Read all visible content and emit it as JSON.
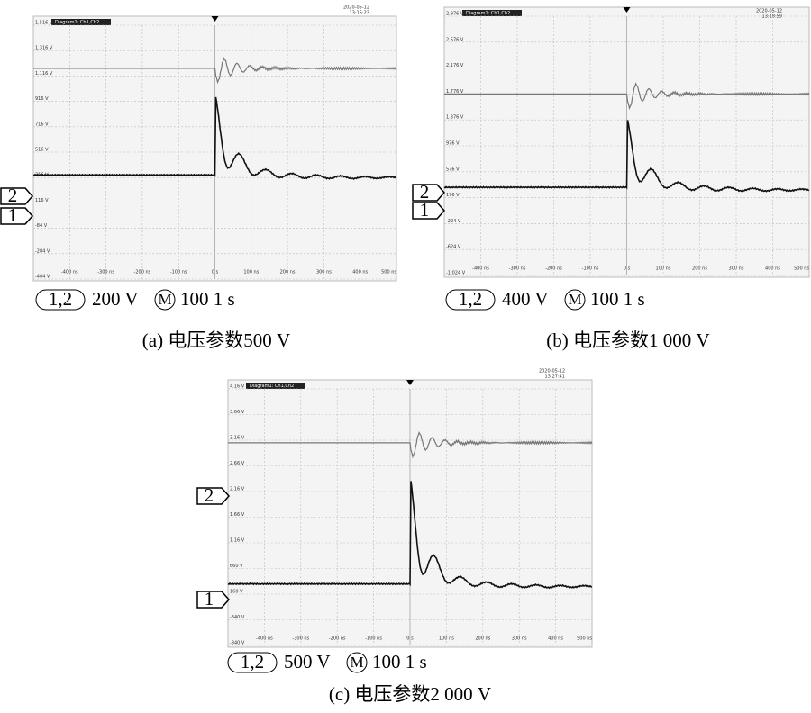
{
  "panels": [
    {
      "date": "2020-05-12",
      "time": "13:15:23",
      "diagram": "Diagram1: Ch1,Ch2",
      "yticks": [
        "1.516 V",
        "1.316 V",
        "1.116 V",
        "916 V",
        "716 V",
        "516 V",
        "316 V",
        "116 V",
        "-84 V",
        "-284 V",
        "-484 V"
      ],
      "xticks": [
        "-400 ns",
        "-300 ns",
        "-200 ns",
        "-100 ns",
        "0 s",
        "100 ns",
        "200 ns",
        "300 ns",
        "400 ns",
        "500 ns"
      ],
      "markers": [
        "2",
        "1"
      ],
      "scale": {
        "channels": "1,2",
        "volts": "200 V",
        "m": "M",
        "time": "100 1 s"
      },
      "caption": "(a)  电压参数500 V"
    },
    {
      "date": "2020-05-12",
      "time": "13:18:59",
      "diagram": "Diagram1: Ch1,Ch2",
      "yticks": [
        "2.976 V",
        "2.576 V",
        "2.176 V",
        "1.776 V",
        "1.376 V",
        "976 V",
        "576 V",
        "176 V",
        "-224 V",
        "-624 V",
        "-1.024 V"
      ],
      "xticks": [
        "-400 ns",
        "-300 ns",
        "-200 ns",
        "-100 ns",
        "0 s",
        "100 ns",
        "200 ns",
        "300 ns",
        "400 ns",
        "500 ns"
      ],
      "markers": [
        "2",
        "1"
      ],
      "scale": {
        "channels": "1,2",
        "volts": "400 V",
        "m": "M",
        "time": "100 1 s"
      },
      "caption": "(b)  电压参数1 000 V"
    },
    {
      "date": "2020-05-12",
      "time": "13:27:41",
      "diagram": "Diagram1: Ch1,Ch2",
      "yticks": [
        "4.16 V",
        "3.66 V",
        "3.16 V",
        "2.66 V",
        "2.16 V",
        "1.66 V",
        "1.16 V",
        "660 V",
        "160 V",
        "-340 V",
        "-840 V"
      ],
      "xticks": [
        "-400 ns",
        "-300 ns",
        "-200 ns",
        "-100 ns",
        "0 s",
        "100 ns",
        "200 ns",
        "300 ns",
        "400 ns",
        "500 ns"
      ],
      "markers": [
        "2",
        "1"
      ],
      "scale": {
        "channels": "1,2",
        "volts": "500 V",
        "m": "M",
        "time": "100 1 s"
      },
      "caption": "(c)  电压参数2 000 V"
    }
  ]
}
